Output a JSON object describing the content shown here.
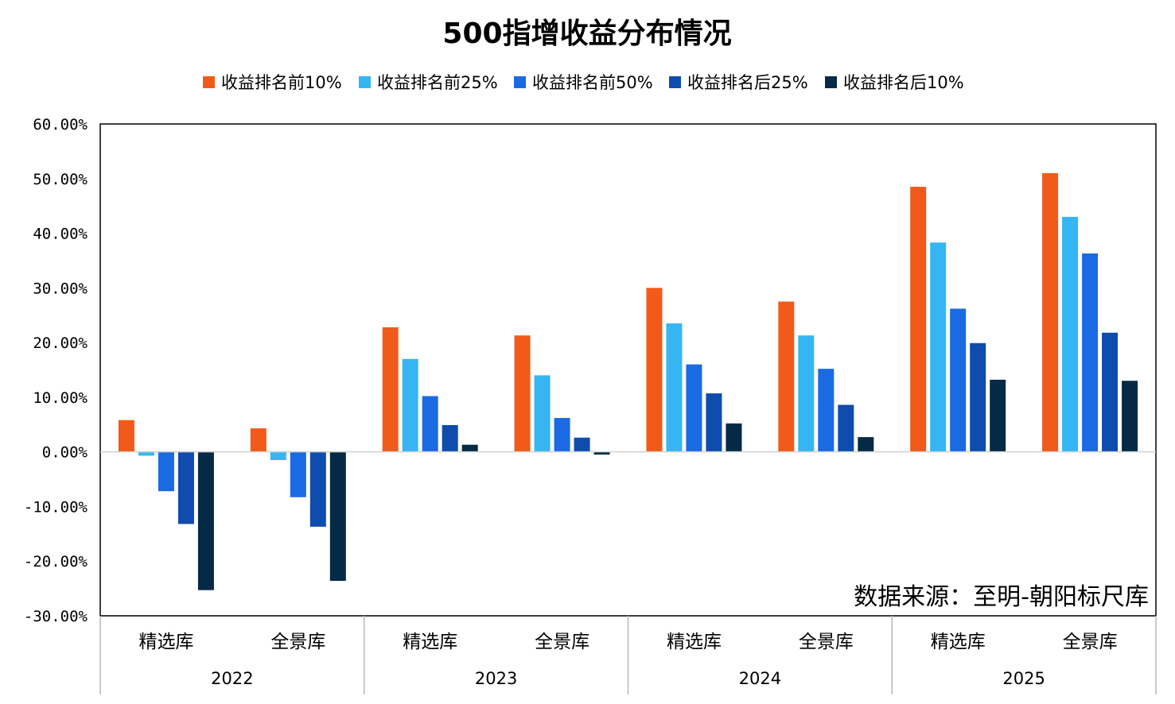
{
  "chart_data": {
    "type": "bar",
    "title": "500指增收益分布情况",
    "source_note": "数据来源：至明-朝阳标尺库",
    "ylim": [
      -30,
      60
    ],
    "yticks": [
      60,
      50,
      40,
      30,
      20,
      10,
      0,
      -10,
      -20,
      -30
    ],
    "ytick_labels": [
      "60.00%",
      "50.00%",
      "40.00%",
      "30.00%",
      "20.00%",
      "10.00%",
      "0.00%",
      "-10.00%",
      "-20.00%",
      "-30.00%"
    ],
    "grid": false,
    "legend_position": "top",
    "groups": [
      {
        "year": "2022",
        "categories": [
          "精选库",
          "全景库"
        ]
      },
      {
        "year": "2023",
        "categories": [
          "精选库",
          "全景库"
        ]
      },
      {
        "year": "2024",
        "categories": [
          "精选库",
          "全景库"
        ]
      },
      {
        "year": "2025",
        "categories": [
          "精选库",
          "全景库"
        ]
      }
    ],
    "series": [
      {
        "name": "收益排名前10%",
        "color": "#f15a19",
        "values": [
          5.8,
          4.3,
          22.8,
          21.3,
          30.0,
          27.5,
          48.5,
          51.0
        ]
      },
      {
        "name": "收益排名前25%",
        "color": "#35b6f2",
        "values": [
          -0.7,
          -1.5,
          17.0,
          14.0,
          23.5,
          21.3,
          38.3,
          43.0
        ]
      },
      {
        "name": "收益排名前50%",
        "color": "#1a6ae4",
        "values": [
          -7.2,
          -8.3,
          10.2,
          6.2,
          16.0,
          15.2,
          26.2,
          36.3
        ]
      },
      {
        "name": "收益排名后25%",
        "color": "#0e4cad",
        "values": [
          -13.2,
          -13.7,
          4.9,
          2.6,
          10.7,
          8.6,
          19.9,
          21.8
        ]
      },
      {
        "name": "收益排名后10%",
        "color": "#042a45",
        "values": [
          -25.3,
          -23.6,
          1.3,
          -0.5,
          5.2,
          2.7,
          13.2,
          13.0
        ]
      }
    ]
  }
}
